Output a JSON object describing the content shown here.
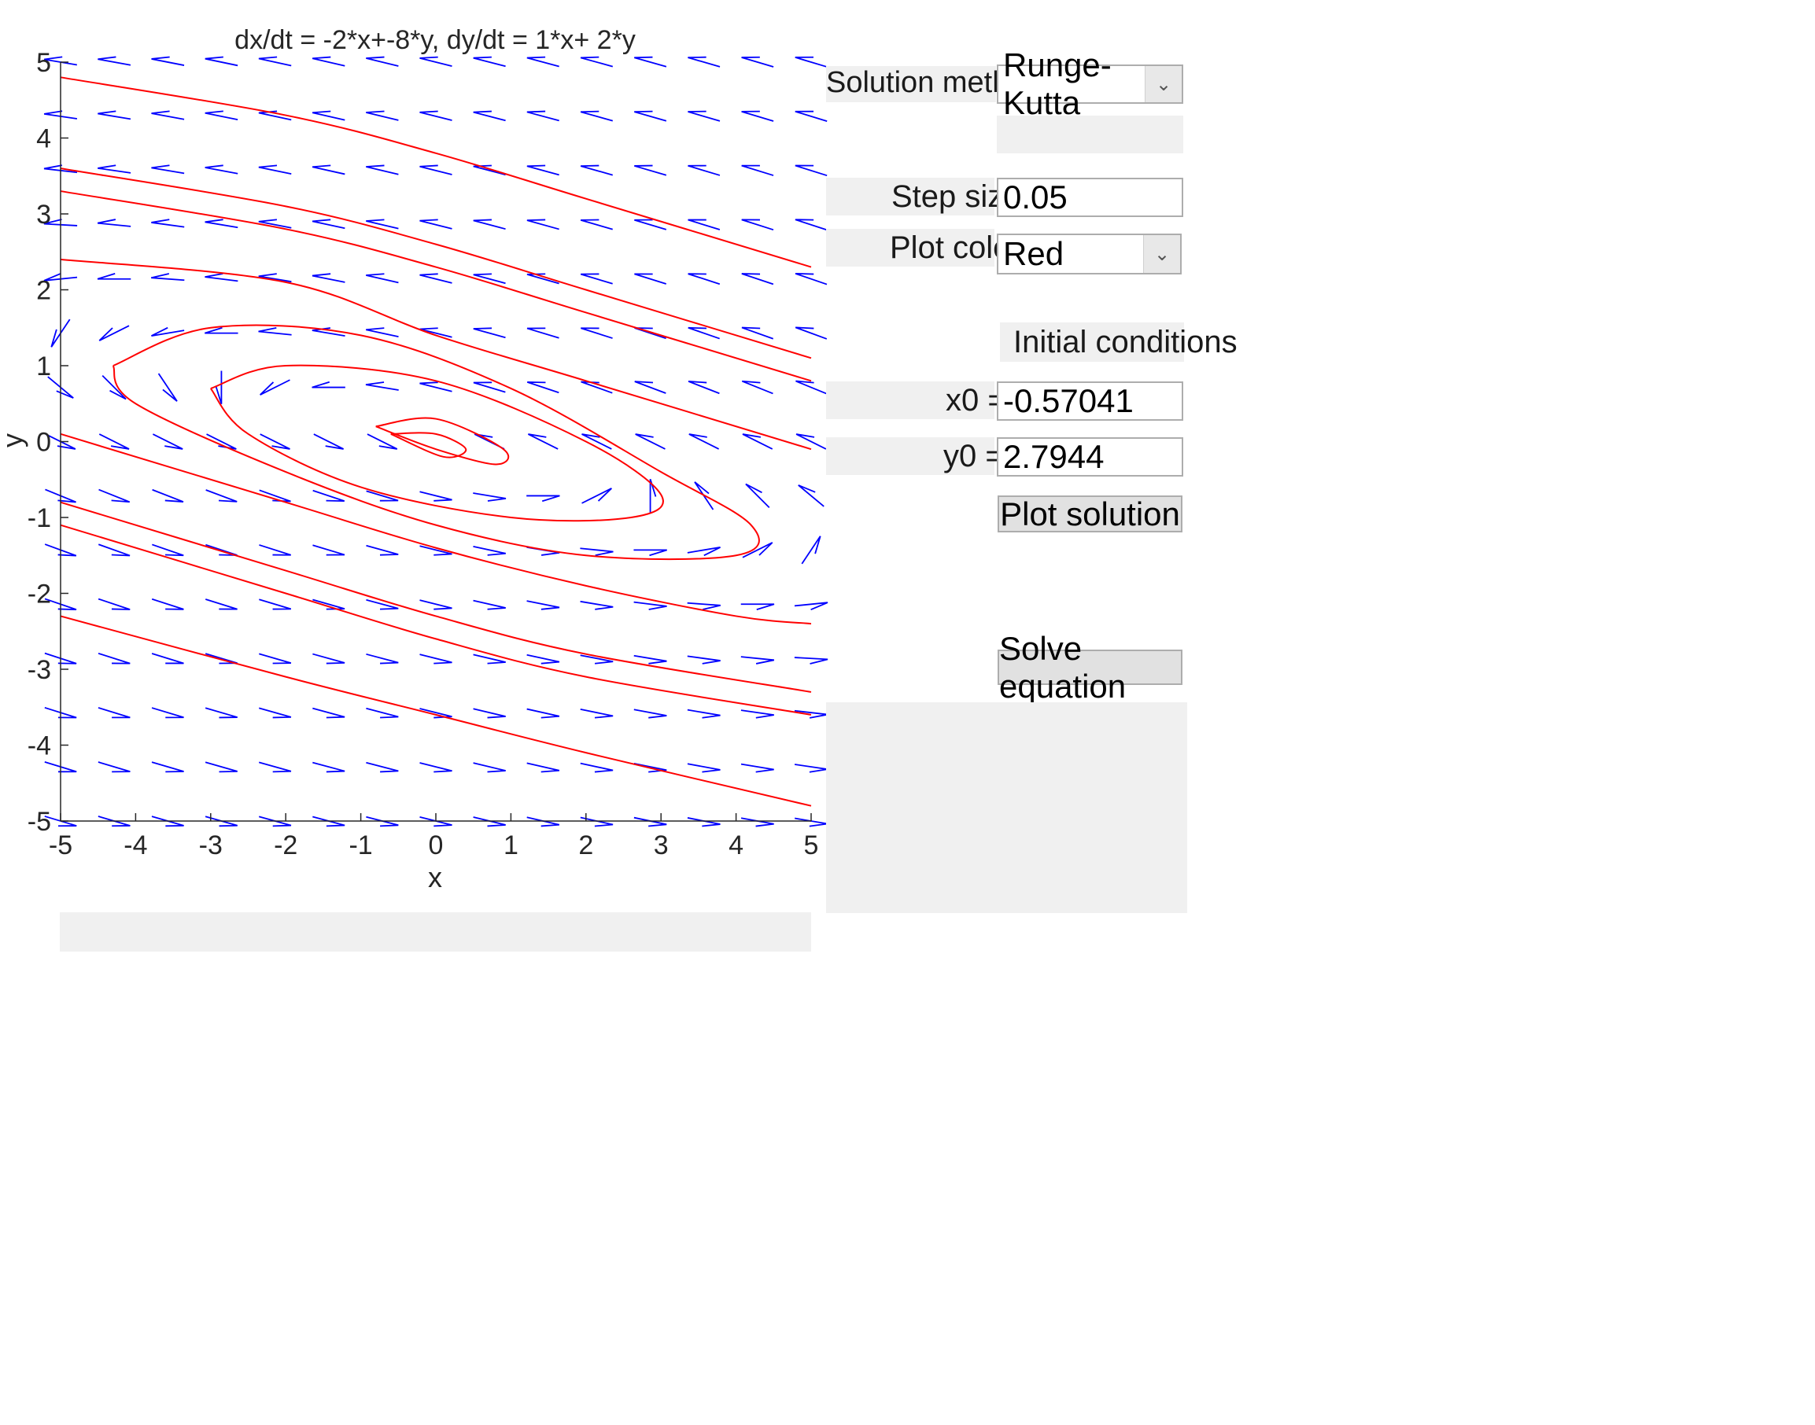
{
  "chart_data": {
    "type": "line",
    "title": "dx/dt = -2*x+-8*y, dy/dt = 1*x+ 2*y",
    "xlabel": "x",
    "ylabel": "y",
    "xlim": [
      -5,
      5
    ],
    "ylim": [
      -5,
      5
    ],
    "xticks": [
      -5,
      -4,
      -3,
      -2,
      -1,
      0,
      1,
      2,
      3,
      4,
      5
    ],
    "yticks": [
      -5,
      -4,
      -3,
      -2,
      -1,
      0,
      1,
      2,
      3,
      4,
      5
    ],
    "xtick_labels": [
      "-5",
      "-4",
      "-3",
      "-2",
      "-1",
      "0",
      "1",
      "2",
      "3",
      "4",
      "5"
    ],
    "ytick_labels": [
      "-5",
      "-4",
      "-3",
      "-2",
      "-1",
      "0",
      "1",
      "2",
      "3",
      "4",
      "5"
    ],
    "vector_field": {
      "a": -2,
      "b": -8,
      "c": 1,
      "d": 2,
      "grid_x": [
        -5,
        5,
        15
      ],
      "grid_y": [
        -5,
        5,
        15
      ],
      "color": "#0000ff"
    },
    "trajectory_color": "#ff0000",
    "series": [
      {
        "x": [
          -5,
          -2,
          0,
          2,
          5
        ],
        "y": [
          4.8,
          4.3,
          3.8,
          3.2,
          2.3
        ]
      },
      {
        "x": [
          -5,
          -2,
          0,
          2,
          5
        ],
        "y": [
          3.6,
          3.1,
          2.6,
          2.0,
          1.1
        ]
      },
      {
        "x": [
          -5,
          -2,
          0,
          2,
          5
        ],
        "y": [
          3.3,
          2.8,
          2.3,
          1.7,
          0.8
        ]
      },
      {
        "x": [
          -5,
          -2,
          0,
          2,
          5
        ],
        "y": [
          2.4,
          2.1,
          1.4,
          0.8,
          -0.1
        ]
      },
      {
        "x": [
          -5,
          -2,
          0,
          2,
          4,
          5
        ],
        "y": [
          0.1,
          -0.8,
          -1.4,
          -1.9,
          -2.3,
          -2.4
        ]
      },
      {
        "x": [
          -5,
          -2,
          0,
          2,
          5
        ],
        "y": [
          -0.8,
          -1.7,
          -2.3,
          -2.8,
          -3.3
        ]
      },
      {
        "x": [
          -5,
          -2,
          0,
          2,
          5
        ],
        "y": [
          -1.1,
          -2.0,
          -2.6,
          -3.1,
          -3.6
        ]
      },
      {
        "x": [
          -5,
          -2,
          0,
          2,
          5
        ],
        "y": [
          -2.3,
          -3.1,
          -3.6,
          -4.1,
          -4.8
        ]
      },
      {
        "x": [
          -4.3,
          -3,
          -1,
          1,
          3,
          4.2,
          4.0,
          2.0,
          0,
          -2,
          -4.0,
          -4.3
        ],
        "y": [
          1.0,
          1.5,
          1.4,
          0.7,
          -0.4,
          -1.1,
          -1.5,
          -1.5,
          -1.1,
          -0.4,
          0.5,
          1.0
        ]
      },
      {
        "x": [
          -3,
          -2,
          0,
          2,
          3.0,
          2.6,
          1,
          -1,
          -2.5,
          -3
        ],
        "y": [
          0.7,
          1.0,
          0.8,
          0.0,
          -0.7,
          -1.0,
          -1.0,
          -0.6,
          0.1,
          0.7
        ]
      },
      {
        "x": [
          -0.8,
          0,
          0.9,
          0.8,
          0,
          -0.8
        ],
        "y": [
          0.2,
          0.3,
          -0.1,
          -0.3,
          -0.1,
          0.2
        ]
      },
      {
        "x": [
          -0.6,
          0,
          0.4,
          0.1,
          -0.6
        ],
        "y": [
          0.1,
          0.1,
          -0.1,
          -0.2,
          0.1
        ]
      }
    ]
  },
  "controls": {
    "solution_method_label": "Solution method:",
    "solution_method_value": "Runge-Kutta",
    "step_size_label": "Step size:",
    "step_size_value": "0.05",
    "plot_color_label": "Plot color:",
    "plot_color_value": "Red",
    "initial_conditions_label": "Initial conditions",
    "x0_label": "x0 =",
    "x0_value": "-0.57041",
    "y0_label": "y0 =",
    "y0_value": "2.7944",
    "plot_solution_button": "Plot solution",
    "solve_equation_button": "Solve equation",
    "dropdown_icon": "chevron-down-icon"
  }
}
